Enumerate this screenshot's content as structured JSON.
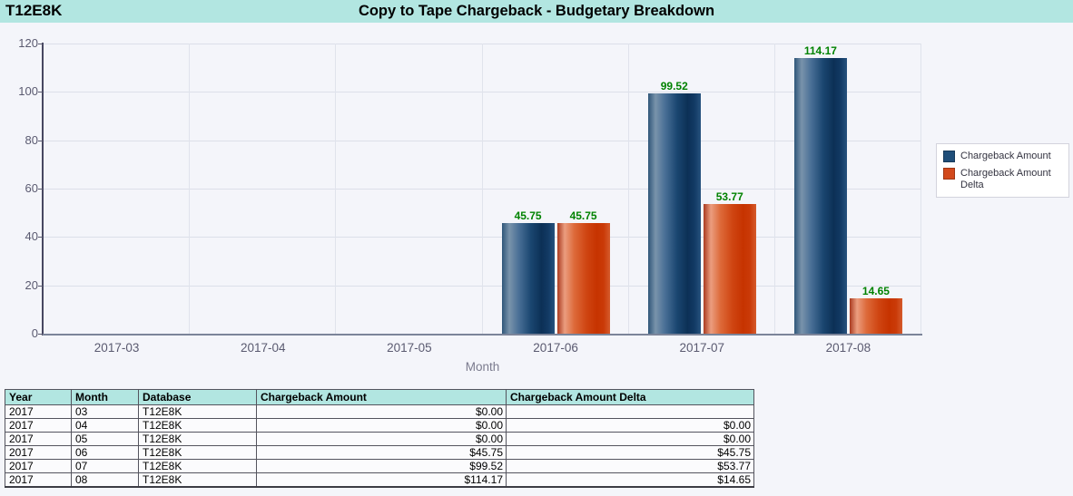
{
  "header": {
    "database_label": "T12E8K",
    "title": "Copy to Tape Chargeback - Budgetary Breakdown"
  },
  "chart_data": {
    "type": "bar",
    "title": "Copy to Tape Chargeback - Budgetary Breakdown",
    "categories": [
      "2017-03",
      "2017-04",
      "2017-05",
      "2017-06",
      "2017-07",
      "2017-08"
    ],
    "series": [
      {
        "name": "Chargeback Amount",
        "color": "#1f4e79",
        "values": [
          0,
          0,
          0,
          45.75,
          99.52,
          114.17
        ]
      },
      {
        "name": "Chargeback Amount Delta",
        "color": "#d2491c",
        "values": [
          null,
          0,
          0,
          45.75,
          53.77,
          14.65
        ]
      }
    ],
    "xlabel": "Month",
    "ylabel": "",
    "ylim": [
      0,
      120
    ],
    "ytick_step": 20,
    "grid": true,
    "legend_position": "right",
    "bar_value_labels": [
      "45.75",
      "45.75",
      "99.52",
      "53.77",
      "114.17",
      "14.65"
    ]
  },
  "colors": {
    "header_bg": "#b2e6e1",
    "page_bg": "#f4f5fa",
    "bar_blue": "#1f4e79",
    "bar_orange": "#d2491c",
    "value_label_green": "#008200",
    "table_header_bg": "#b2e6e1"
  },
  "table": {
    "headers": [
      "Year",
      "Month",
      "Database",
      "Chargeback Amount",
      "Chargeback Amount Delta"
    ],
    "align": [
      "left",
      "left",
      "left",
      "right",
      "right"
    ],
    "rows": [
      [
        "2017",
        "03",
        "T12E8K",
        "$0.00",
        ""
      ],
      [
        "2017",
        "04",
        "T12E8K",
        "$0.00",
        "$0.00"
      ],
      [
        "2017",
        "05",
        "T12E8K",
        "$0.00",
        "$0.00"
      ],
      [
        "2017",
        "06",
        "T12E8K",
        "$45.75",
        "$45.75"
      ],
      [
        "2017",
        "07",
        "T12E8K",
        "$99.52",
        "$53.77"
      ],
      [
        "2017",
        "08",
        "T12E8K",
        "$114.17",
        "$14.65"
      ]
    ]
  }
}
